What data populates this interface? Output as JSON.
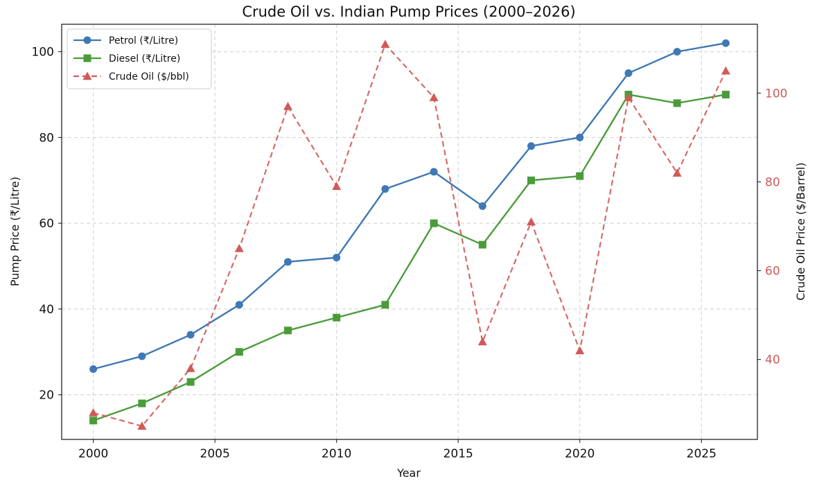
{
  "chart_data": {
    "type": "line",
    "title": "Crude Oil vs. Indian Pump Prices (2000–2026)",
    "xlabel": "Year",
    "ylabel": "Pump Price (₹/Litre)",
    "ylabel_right": "Crude Oil Price ($/Barrel)",
    "xlim": [
      1998.7,
      2027.3
    ],
    "ylim": [
      9.6,
      106.4
    ],
    "ylim_right": [
      22.0,
      115.5
    ],
    "x_ticks": [
      2000,
      2005,
      2010,
      2015,
      2020,
      2025
    ],
    "y_ticks": [
      20,
      40,
      60,
      80,
      100
    ],
    "y_ticks_right": [
      40,
      60,
      80,
      100
    ],
    "grid": true,
    "legend_position": "upper-left",
    "x": [
      2000,
      2002,
      2004,
      2006,
      2008,
      2010,
      2012,
      2014,
      2016,
      2018,
      2020,
      2022,
      2024,
      2026
    ],
    "series": [
      {
        "name": "Petrol (₹/Litre)",
        "axis": "left",
        "color": "#3f78b4",
        "marker": "circle",
        "line_style": "solid",
        "values": [
          26,
          29,
          34,
          41,
          51,
          52,
          68,
          72,
          64,
          78,
          80,
          95,
          100,
          102
        ]
      },
      {
        "name": "Diesel (₹/Litre)",
        "axis": "left",
        "color": "#4a9c3a",
        "marker": "square",
        "line_style": "solid",
        "values": [
          14,
          18,
          23,
          30,
          35,
          38,
          41,
          60,
          55,
          70,
          71,
          90,
          88,
          90
        ]
      },
      {
        "name": "Crude Oil ($/bbl)",
        "axis": "right",
        "color": "#d05a57",
        "marker": "triangle",
        "line_style": "dashed",
        "values": [
          28,
          25,
          38,
          65,
          97,
          79,
          111,
          99,
          44,
          71,
          42,
          99,
          82,
          105
        ]
      }
    ]
  }
}
